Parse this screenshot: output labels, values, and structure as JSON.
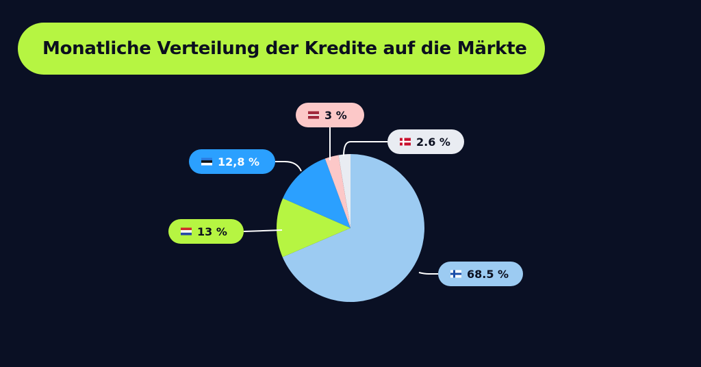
{
  "chart_data": {
    "type": "pie",
    "title": "Monatliche Verteilung der Kredite auf die Märkte",
    "slices": [
      {
        "value_label": "68.5 %",
        "value": 68.5,
        "flag": "fi",
        "color": "#9ccbf2"
      },
      {
        "value_label": "13 %",
        "value": 13,
        "flag": "nl",
        "color": "#b6f542"
      },
      {
        "value_label": "12,8 %",
        "value": 12.8,
        "flag": "ee",
        "color": "#2ba0ff"
      },
      {
        "value_label": "3 %",
        "value": 3,
        "flag": "lv",
        "color": "#fcc8c8"
      },
      {
        "value_label": "2.6 %",
        "value": 2.6,
        "flag": "dk",
        "color": "#e9ecf2"
      }
    ]
  },
  "colors": {
    "background": "#0a1024",
    "title_pill": "#b6f542",
    "leader_line": "#ffffff"
  }
}
